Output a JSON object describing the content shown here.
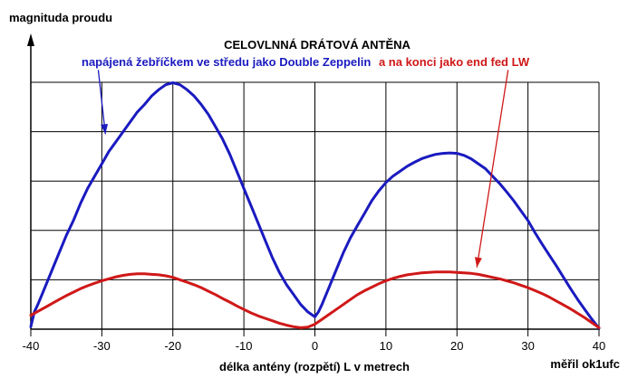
{
  "chart_data": {
    "type": "line",
    "title": "CELOVLNNÁ DRÁTOVÁ ANTĚNA",
    "subtitle_blue": "napájená žebříčkem ve středu jako Double Zeppelin",
    "subtitle_red": "a na konci jako end fed LW",
    "ylabel": "magnituda proudu",
    "xlabel": "délka antény (rozpětí) L v metrech",
    "credit": "měřil ok1ufc",
    "xlim": [
      -40,
      40
    ],
    "ylim": [
      0,
      5
    ],
    "x_ticks": [
      -40,
      -30,
      -20,
      -10,
      0,
      10,
      20,
      30,
      40
    ],
    "x_tick_labels": [
      "-40",
      "-30",
      "-20",
      "-10",
      "0",
      "10",
      "20",
      "30",
      "40"
    ],
    "y_gridlines": [
      1,
      2,
      3,
      4,
      5
    ],
    "grid": true,
    "series": [
      {
        "color": "#1a1ac0",
        "x": [
          -40,
          -39.5,
          -39,
          -38,
          -37,
          -36,
          -35,
          -34,
          -33,
          -32,
          -31,
          -30,
          -29,
          -28,
          -27,
          -26,
          -25,
          -24,
          -23,
          -22,
          -21,
          -20,
          -19,
          -18,
          -17,
          -16,
          -15,
          -14,
          -13,
          -12,
          -11,
          -10,
          -9,
          -8,
          -7,
          -6,
          -5,
          -4,
          -3,
          -2,
          -1,
          0,
          0.5,
          1,
          2,
          3,
          4,
          5,
          6,
          7,
          8,
          9,
          10,
          11,
          12,
          13,
          14,
          15,
          16,
          17,
          18,
          19,
          20,
          21,
          22,
          23,
          24,
          25,
          26,
          27,
          28,
          29,
          30,
          31,
          32,
          33,
          34,
          35,
          36,
          37,
          38,
          39,
          40
        ],
        "y": [
          0.05,
          0.35,
          0.5,
          0.85,
          1.2,
          1.55,
          1.9,
          2.2,
          2.55,
          2.85,
          3.1,
          3.35,
          3.6,
          3.8,
          4.0,
          4.2,
          4.4,
          4.55,
          4.72,
          4.85,
          4.95,
          4.99,
          4.95,
          4.85,
          4.72,
          4.55,
          4.35,
          4.1,
          3.85,
          3.55,
          3.2,
          2.85,
          2.5,
          2.15,
          1.8,
          1.45,
          1.15,
          0.9,
          0.7,
          0.5,
          0.35,
          0.25,
          0.35,
          0.5,
          0.85,
          1.2,
          1.55,
          1.85,
          2.1,
          2.35,
          2.6,
          2.8,
          2.97,
          3.1,
          3.2,
          3.3,
          3.38,
          3.45,
          3.5,
          3.54,
          3.56,
          3.57,
          3.56,
          3.52,
          3.45,
          3.35,
          3.25,
          3.1,
          2.95,
          2.78,
          2.6,
          2.4,
          2.2,
          1.95,
          1.72,
          1.5,
          1.28,
          1.05,
          0.82,
          0.6,
          0.4,
          0.2,
          0.02
        ]
      },
      {
        "color": "#d01818",
        "x": [
          -40,
          -39,
          -38,
          -37,
          -36,
          -35,
          -34,
          -33,
          -32,
          -31,
          -30,
          -29,
          -28,
          -27,
          -26,
          -25,
          -24,
          -23,
          -22,
          -21,
          -20,
          -19,
          -18,
          -17,
          -16,
          -15,
          -14,
          -13,
          -12,
          -11,
          -10,
          -9,
          -8,
          -7,
          -6,
          -5,
          -4,
          -3,
          -2,
          -1,
          0,
          1,
          2,
          3,
          4,
          5,
          6,
          7,
          8,
          9,
          10,
          11,
          12,
          13,
          14,
          15,
          16,
          17,
          18,
          19,
          20,
          21,
          22,
          23,
          24,
          25,
          26,
          27,
          28,
          29,
          30,
          31,
          32,
          33,
          34,
          35,
          36,
          37,
          38,
          39,
          40
        ],
        "y": [
          0.28,
          0.36,
          0.44,
          0.52,
          0.6,
          0.68,
          0.75,
          0.82,
          0.88,
          0.93,
          0.98,
          1.02,
          1.06,
          1.09,
          1.11,
          1.12,
          1.12,
          1.11,
          1.1,
          1.08,
          1.05,
          1.0,
          0.95,
          0.9,
          0.84,
          0.77,
          0.7,
          0.62,
          0.55,
          0.47,
          0.4,
          0.33,
          0.27,
          0.22,
          0.17,
          0.12,
          0.08,
          0.05,
          0.03,
          0.04,
          0.1,
          0.2,
          0.3,
          0.4,
          0.5,
          0.6,
          0.7,
          0.78,
          0.85,
          0.92,
          0.98,
          1.03,
          1.07,
          1.1,
          1.12,
          1.14,
          1.15,
          1.16,
          1.16,
          1.16,
          1.15,
          1.14,
          1.13,
          1.11,
          1.08,
          1.05,
          1.02,
          0.98,
          0.94,
          0.89,
          0.84,
          0.78,
          0.72,
          0.65,
          0.57,
          0.49,
          0.41,
          0.32,
          0.23,
          0.13,
          0.03
        ]
      }
    ],
    "annotations": [
      {
        "series": 0,
        "from_data": [
          -30.5,
          5.25
        ],
        "to_data": [
          -29.5,
          3.95
        ]
      },
      {
        "series": 1,
        "from_data": [
          27.2,
          5.25
        ],
        "to_data": [
          22.8,
          1.25
        ]
      }
    ]
  }
}
